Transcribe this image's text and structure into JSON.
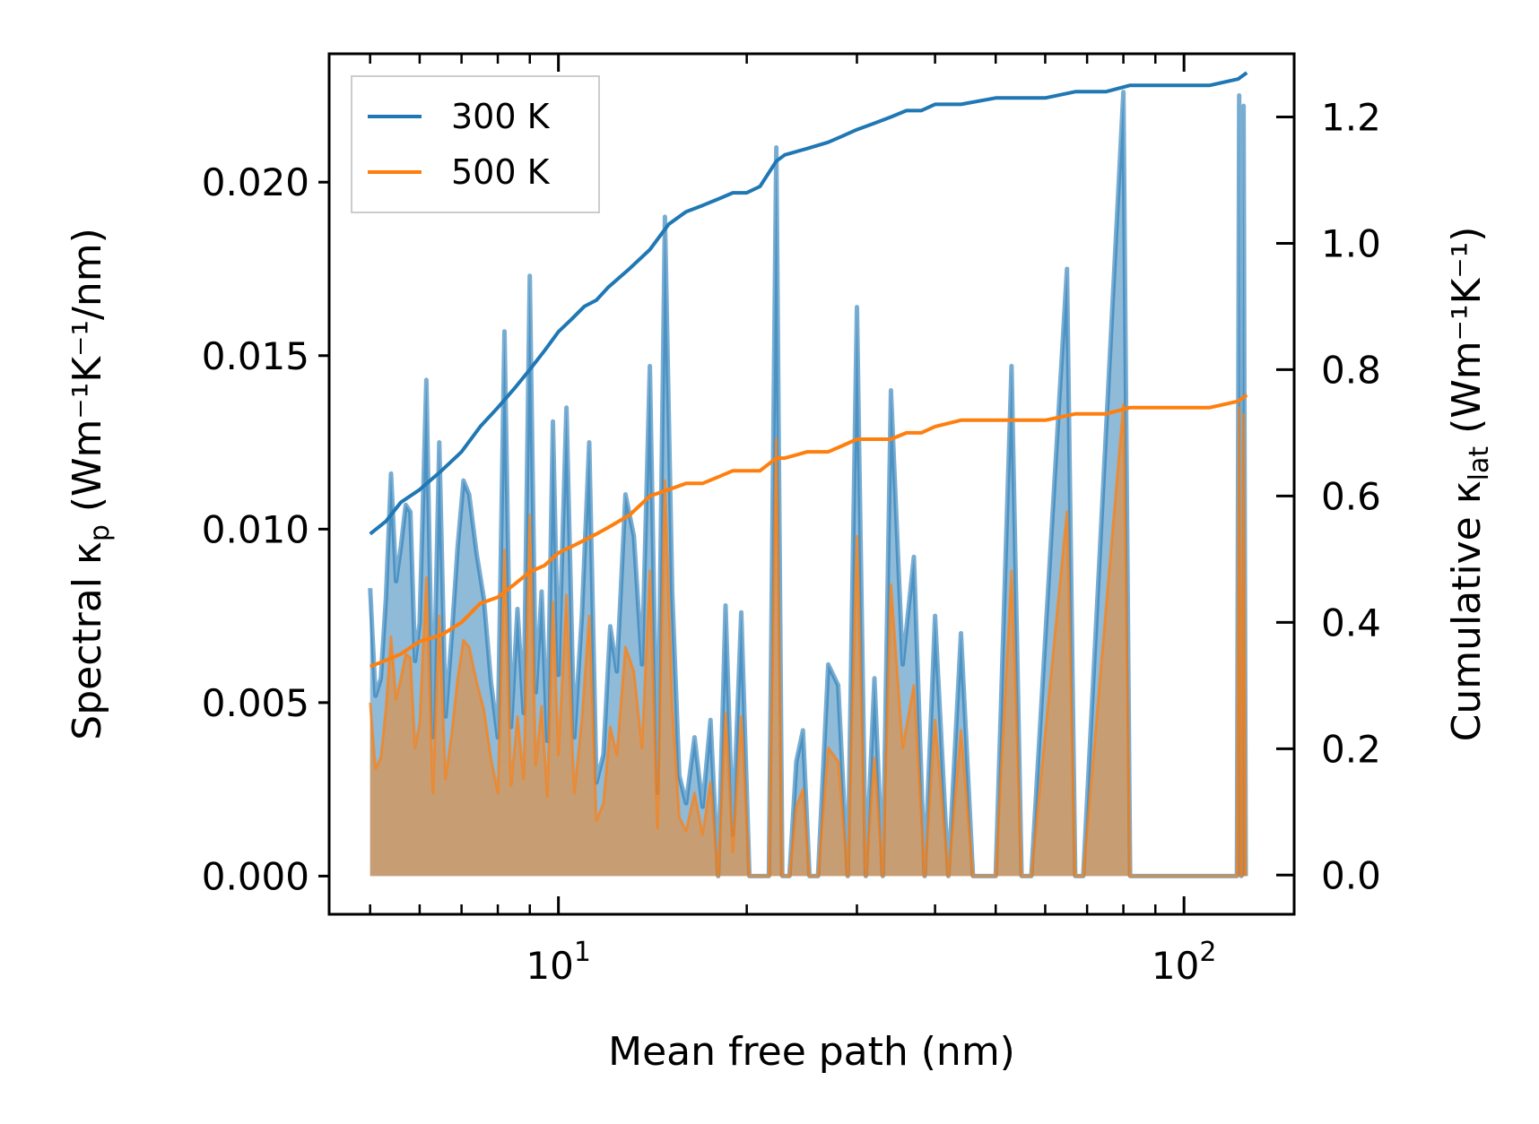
{
  "chart_data": {
    "type": "line",
    "xlabel": "Mean free path (nm)",
    "ylabel_left": "Spectral κ",
    "ylabel_left_sub": "p",
    "ylabel_left_units": "(Wm⁻¹K⁻¹/nm)",
    "ylabel_right": "Cumulative κ",
    "ylabel_right_sub": "lat",
    "ylabel_right_units": "(Wm⁻¹K⁻¹)",
    "xscale": "log",
    "xlim": [
      4.3,
      150
    ],
    "xticks_major": [
      {
        "value": 10,
        "base": "10",
        "exp": "1"
      },
      {
        "value": 100,
        "base": "10",
        "exp": "2"
      }
    ],
    "ylim_left": [
      -0.0011,
      0.0237
    ],
    "yticks_left": [
      {
        "value": 0.0,
        "label": "0.000"
      },
      {
        "value": 0.005,
        "label": "0.005"
      },
      {
        "value": 0.01,
        "label": "0.010"
      },
      {
        "value": 0.015,
        "label": "0.015"
      },
      {
        "value": 0.02,
        "label": "0.020"
      }
    ],
    "ylim_right": [
      -0.062,
      1.3
    ],
    "yticks_right": [
      {
        "value": 0.0,
        "label": "0.0"
      },
      {
        "value": 0.2,
        "label": "0.2"
      },
      {
        "value": 0.4,
        "label": "0.4"
      },
      {
        "value": 0.6,
        "label": "0.6"
      },
      {
        "value": 0.8,
        "label": "0.8"
      },
      {
        "value": 1.0,
        "label": "1.0"
      },
      {
        "value": 1.2,
        "label": "1.2"
      }
    ],
    "legend": {
      "location": "top-left",
      "entries": [
        "300 K",
        "500 K"
      ]
    },
    "colors": {
      "s300": "#1f77b4",
      "s500": "#ff7f0e",
      "fill300": "#1f77b4",
      "fill500": "#ff7f0e",
      "axis": "#000000"
    },
    "spectral_x": [
      5.0,
      5.1,
      5.2,
      5.3,
      5.4,
      5.5,
      5.6,
      5.7,
      5.8,
      5.9,
      6.0,
      6.15,
      6.3,
      6.45,
      6.6,
      6.75,
      6.9,
      7.05,
      7.2,
      7.4,
      7.6,
      7.8,
      8.0,
      8.2,
      8.4,
      8.6,
      8.8,
      9.0,
      9.2,
      9.4,
      9.6,
      9.8,
      10.0,
      10.3,
      10.6,
      10.9,
      11.2,
      11.5,
      11.8,
      12.1,
      12.4,
      12.8,
      13.2,
      13.6,
      14.0,
      14.4,
      14.8,
      15.2,
      15.6,
      16.0,
      16.5,
      17.0,
      17.5,
      18.0,
      18.5,
      19.0,
      19.6,
      20.2,
      21.0,
      21.7,
      22.3,
      22.8,
      23.4,
      24.0,
      24.6,
      25.2,
      26.0,
      27.0,
      28.0,
      29.0,
      30.0,
      31.0,
      32.0,
      33.0,
      34.0,
      35.5,
      37.0,
      38.5,
      40.0,
      42.0,
      44.0,
      46.0,
      48.0,
      50.0,
      53.0,
      55.0,
      57.0,
      65.0,
      67.0,
      69.0,
      80.0,
      82.0,
      84.0,
      95.0,
      110.0,
      118.0,
      120.0,
      121.5,
      122.5,
      123.5,
      124.5,
      125.5
    ],
    "spectral_300": [
      0.0083,
      0.0052,
      0.0057,
      0.008,
      0.0116,
      0.0085,
      0.0095,
      0.0107,
      0.0105,
      0.0062,
      0.0073,
      0.0143,
      0.004,
      0.0125,
      0.0046,
      0.0069,
      0.0095,
      0.0114,
      0.011,
      0.0093,
      0.008,
      0.0056,
      0.004,
      0.0157,
      0.0043,
      0.0077,
      0.0047,
      0.0173,
      0.0053,
      0.0082,
      0.0039,
      0.0131,
      0.0058,
      0.0135,
      0.004,
      0.0075,
      0.0125,
      0.0027,
      0.0035,
      0.0072,
      0.0059,
      0.011,
      0.0098,
      0.0061,
      0.0147,
      0.0024,
      0.019,
      0.0082,
      0.0029,
      0.0021,
      0.004,
      0.002,
      0.0045,
      0.0,
      0.0078,
      0.0012,
      0.0076,
      0.0,
      0.0,
      0.0,
      0.021,
      0.0,
      0.0,
      0.0033,
      0.0042,
      0.0,
      0.0,
      0.0061,
      0.0055,
      0.0,
      0.0164,
      0.0,
      0.0057,
      0.0,
      0.014,
      0.0061,
      0.0092,
      0.0,
      0.0075,
      0.0,
      0.007,
      0.0,
      0.0,
      0.0,
      0.0147,
      0.0,
      0.0,
      0.0175,
      0.0,
      0.0,
      0.0226,
      0.0,
      0.0,
      0.0,
      0.0,
      0.0,
      0.0,
      0.0,
      0.0225,
      0.0,
      0.0222,
      0.0
    ],
    "spectral_500": [
      0.005,
      0.0031,
      0.0034,
      0.0048,
      0.0069,
      0.0051,
      0.0057,
      0.0064,
      0.0063,
      0.0037,
      0.0044,
      0.0086,
      0.0024,
      0.0075,
      0.0028,
      0.0041,
      0.0057,
      0.0068,
      0.0066,
      0.0056,
      0.0048,
      0.0034,
      0.0024,
      0.0094,
      0.0026,
      0.0046,
      0.0028,
      0.0104,
      0.0032,
      0.0049,
      0.0023,
      0.0079,
      0.0035,
      0.0081,
      0.0024,
      0.0045,
      0.0075,
      0.0016,
      0.0021,
      0.0043,
      0.0035,
      0.0066,
      0.0059,
      0.0037,
      0.0088,
      0.0014,
      0.0114,
      0.0049,
      0.0017,
      0.0013,
      0.0024,
      0.0012,
      0.0027,
      0.0,
      0.0047,
      0.0007,
      0.0046,
      0.0,
      0.0,
      0.0,
      0.0126,
      0.0,
      0.0,
      0.002,
      0.0025,
      0.0,
      0.0,
      0.0037,
      0.0033,
      0.0,
      0.0098,
      0.0,
      0.0034,
      0.0,
      0.0084,
      0.0037,
      0.0055,
      0.0,
      0.0045,
      0.0,
      0.0042,
      0.0,
      0.0,
      0.0,
      0.0088,
      0.0,
      0.0,
      0.0105,
      0.0,
      0.0,
      0.0136,
      0.0,
      0.0,
      0.0,
      0.0,
      0.0,
      0.0,
      0.0,
      0.0135,
      0.0,
      0.0133,
      0.0
    ],
    "cumulative_300": {
      "x": [
        5.0,
        5.3,
        5.6,
        6.0,
        6.5,
        7.0,
        7.5,
        8.0,
        8.5,
        9.0,
        9.5,
        10.0,
        10.5,
        11.0,
        11.5,
        12.0,
        13.0,
        14.0,
        15.0,
        16.0,
        17.0,
        18.0,
        19.0,
        20.0,
        21.0,
        22.3,
        23.0,
        25.0,
        27.0,
        28.5,
        30.0,
        32.0,
        34.0,
        36.0,
        38.0,
        40.0,
        44.0,
        50.0,
        56.0,
        60.0,
        67.0,
        75.0,
        82.0,
        90.0,
        110.0,
        122.0,
        126.0
      ],
      "y": [
        0.54,
        0.56,
        0.59,
        0.61,
        0.64,
        0.67,
        0.71,
        0.74,
        0.77,
        0.8,
        0.83,
        0.86,
        0.88,
        0.9,
        0.91,
        0.93,
        0.96,
        0.99,
        1.03,
        1.05,
        1.06,
        1.07,
        1.08,
        1.08,
        1.09,
        1.13,
        1.14,
        1.15,
        1.16,
        1.17,
        1.18,
        1.19,
        1.2,
        1.21,
        1.21,
        1.22,
        1.22,
        1.23,
        1.23,
        1.23,
        1.24,
        1.24,
        1.25,
        1.25,
        1.25,
        1.26,
        1.27
      ]
    },
    "cumulative_500": {
      "x": [
        5.0,
        5.3,
        5.6,
        6.0,
        6.5,
        7.0,
        7.5,
        8.0,
        8.5,
        9.0,
        9.5,
        10.0,
        10.5,
        11.0,
        11.5,
        12.0,
        13.0,
        14.0,
        15.0,
        16.0,
        17.0,
        18.0,
        19.0,
        20.0,
        21.0,
        22.3,
        23.0,
        25.0,
        27.0,
        28.5,
        30.0,
        32.0,
        34.0,
        36.0,
        38.0,
        40.0,
        44.0,
        50.0,
        56.0,
        60.0,
        67.0,
        75.0,
        82.0,
        90.0,
        110.0,
        122.0,
        126.0
      ],
      "y": [
        0.33,
        0.34,
        0.35,
        0.37,
        0.38,
        0.4,
        0.43,
        0.44,
        0.46,
        0.48,
        0.49,
        0.51,
        0.52,
        0.53,
        0.54,
        0.55,
        0.57,
        0.6,
        0.61,
        0.62,
        0.62,
        0.63,
        0.64,
        0.64,
        0.64,
        0.66,
        0.66,
        0.67,
        0.67,
        0.68,
        0.69,
        0.69,
        0.69,
        0.7,
        0.7,
        0.71,
        0.72,
        0.72,
        0.72,
        0.72,
        0.73,
        0.73,
        0.74,
        0.74,
        0.74,
        0.75,
        0.76
      ]
    }
  }
}
